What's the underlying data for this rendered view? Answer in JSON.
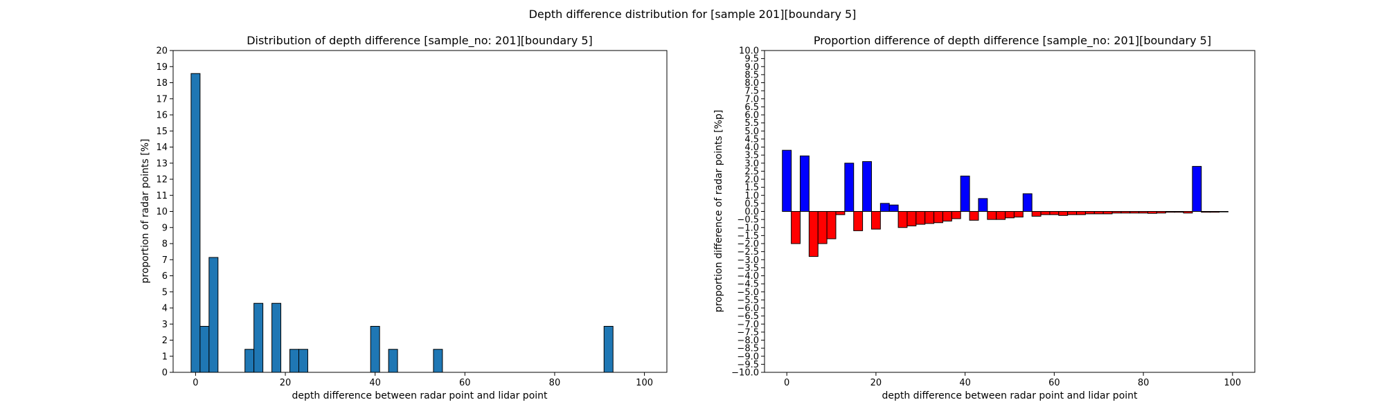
{
  "suptitle": "Depth difference distribution for [sample 201][boundary 5]",
  "chart_data": [
    {
      "type": "bar",
      "title": "Distribution of depth difference [sample_no: 201][boundary 5]",
      "xlabel": "depth difference between radar point and lidar point",
      "ylabel": "proportion of radar points [%]",
      "xlim": [
        -5,
        105
      ],
      "ylim": [
        0,
        20
      ],
      "xticks": [
        0,
        20,
        40,
        60,
        80,
        100
      ],
      "yticks": [
        0,
        1,
        2,
        3,
        4,
        5,
        6,
        7,
        8,
        9,
        10,
        11,
        12,
        13,
        14,
        15,
        16,
        17,
        18,
        19,
        20
      ],
      "bin_width": 2,
      "bar_color": "#1f77b4",
      "edge_color": "#000000",
      "bins": [
        0,
        2,
        4,
        12,
        14,
        18,
        22,
        24,
        40,
        44,
        54,
        92
      ],
      "values": [
        18.57,
        2.86,
        7.14,
        1.43,
        4.29,
        4.29,
        1.43,
        1.43,
        2.86,
        1.43,
        1.43,
        2.86
      ]
    },
    {
      "type": "bar",
      "title": "Proportion difference of depth difference [sample_no: 201][boundary 5]",
      "xlabel": "depth difference between radar point and lidar point",
      "ylabel": "proportion difference of radar points [%p]",
      "xlim": [
        -5,
        105
      ],
      "ylim": [
        -10,
        10
      ],
      "xticks": [
        0,
        20,
        40,
        60,
        80,
        100
      ],
      "ytick_step": 0.5,
      "bin_width": 2,
      "positive_color": "#0000ff",
      "negative_color": "#ff0000",
      "edge_color": "#000000",
      "bins": [
        0,
        2,
        4,
        6,
        8,
        10,
        12,
        14,
        16,
        18,
        20,
        22,
        24,
        26,
        28,
        30,
        32,
        34,
        36,
        38,
        40,
        42,
        44,
        46,
        48,
        50,
        52,
        54,
        56,
        58,
        60,
        62,
        64,
        66,
        68,
        70,
        72,
        74,
        76,
        78,
        80,
        82,
        84,
        86,
        88,
        90,
        92,
        94,
        96,
        98
      ],
      "values": [
        3.8,
        -2.0,
        3.45,
        -2.8,
        -2.0,
        -1.7,
        -0.2,
        3.0,
        -1.2,
        3.1,
        -1.1,
        0.5,
        0.4,
        -1.0,
        -0.9,
        -0.8,
        -0.75,
        -0.7,
        -0.6,
        -0.45,
        2.2,
        -0.55,
        0.8,
        -0.5,
        -0.5,
        -0.4,
        -0.35,
        1.1,
        -0.3,
        -0.2,
        -0.2,
        -0.25,
        -0.2,
        -0.2,
        -0.15,
        -0.15,
        -0.15,
        -0.1,
        -0.1,
        -0.1,
        -0.1,
        -0.12,
        -0.1,
        -0.05,
        -0.05,
        -0.1,
        2.8,
        -0.05,
        -0.05,
        -0.03
      ]
    }
  ]
}
